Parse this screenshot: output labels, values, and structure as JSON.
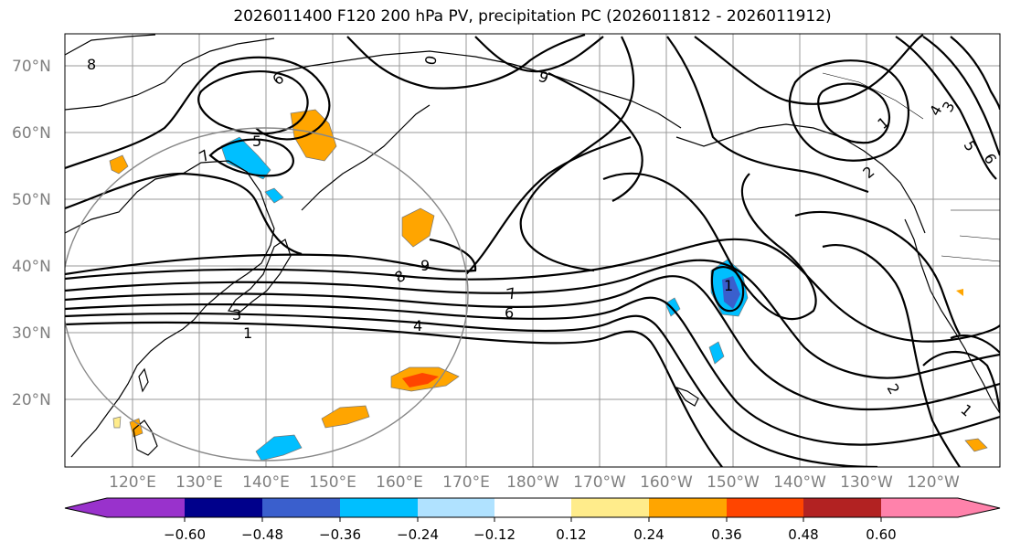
{
  "title": "2026011400 F120 200 hPa PV, precipitation PC (2026011812 - 2026011912)",
  "lat_labels": [
    "70°N",
    "60°N",
    "50°N",
    "40°N",
    "30°N",
    "20°N"
  ],
  "lon_labels": [
    "120°E",
    "130°E",
    "140°E",
    "150°E",
    "160°E",
    "170°E",
    "180°W",
    "170°W",
    "160°W",
    "150°W",
    "140°W",
    "130°W",
    "120°W"
  ],
  "contour_labels": [
    "8",
    "6",
    "5",
    "7",
    "0",
    "9",
    "1",
    "2",
    "3",
    "4",
    "1",
    "8",
    "9",
    "7",
    "6",
    "4",
    "3",
    "1",
    "2",
    "1",
    "5",
    "6"
  ],
  "colorbar": {
    "ticks": [
      "−0.60",
      "−0.48",
      "−0.36",
      "−0.24",
      "−0.12",
      "0.12",
      "0.24",
      "0.36",
      "0.48",
      "0.60"
    ],
    "colors": [
      "#9932cc",
      "#00008b",
      "#3a5fcd",
      "#00bfff",
      "#b0e2ff",
      "#ffffff",
      "#ffec8b",
      "#ffa500",
      "#ff4500",
      "#b22222",
      "#ff82ab"
    ]
  },
  "colors": {
    "graticule": "#9a9a9a",
    "label_gray": "#7f7f7f",
    "contour": "#000000"
  }
}
